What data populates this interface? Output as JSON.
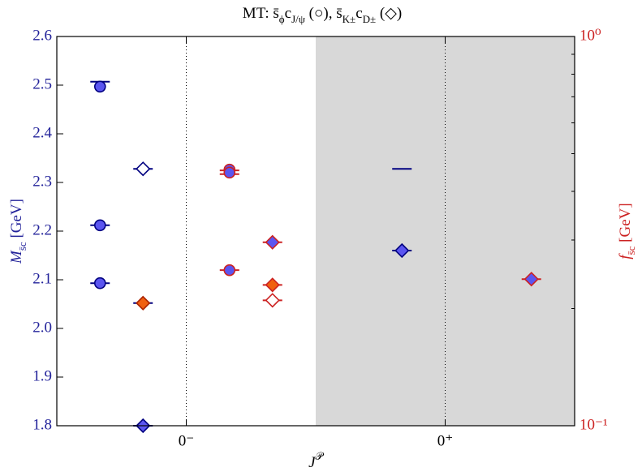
{
  "chart_data": {
    "type": "scatter",
    "title": [
      {
        "text": "MT: s̄"
      },
      {
        "text": "ϕ",
        "sub": true
      },
      {
        "text": "c"
      },
      {
        "text": "J/ψ",
        "sub": true
      },
      {
        "text": " (○), s̄"
      },
      {
        "text": "K±",
        "sub": true
      },
      {
        "text": "c"
      },
      {
        "text": "D±",
        "sub": true
      },
      {
        "text": " (◇)"
      }
    ],
    "xlabel": [
      {
        "text": "J"
      },
      {
        "text": "𝒫",
        "sup": true
      }
    ],
    "ylabel": [
      {
        "text": "M"
      },
      {
        "text": "s̄c",
        "sub": true
      },
      {
        "text": " [GeV]"
      }
    ],
    "y2label": [
      {
        "text": "f"
      },
      {
        "text": "s̄c",
        "sub": true
      },
      {
        "text": " [GeV]"
      }
    ],
    "xlim": [
      -0.5,
      1.5
    ],
    "xticks": [
      {
        "value": 0,
        "label": "0⁻"
      },
      {
        "value": 1,
        "label": "0⁺"
      }
    ],
    "ylim": [
      1.8,
      2.6
    ],
    "yticks": [
      1.8,
      1.9,
      {
        "value": 2,
        "label": "2.0"
      },
      2.1,
      2.2,
      2.3,
      2.4,
      2.5,
      2.6
    ],
    "y2lim": [
      0.1,
      1
    ],
    "y2log": true,
    "y2ticks": [
      {
        "value": 0.1,
        "label": "10⁻¹"
      },
      {
        "value": 1,
        "label": "10⁰"
      }
    ],
    "y2minor": [
      0.2,
      0.3,
      0.4,
      0.5,
      0.6,
      0.7,
      0.8,
      0.9
    ],
    "y_color": "#22229a",
    "y2_color": "#cc2222",
    "shade": [
      0.5,
      1.5
    ],
    "series": [
      {
        "marker": "circle",
        "fill": "#5b55f0",
        "edge": "#000080",
        "bar_color": "#000080",
        "axis": "y",
        "x": [
          -0.333,
          -0.333,
          -0.333
        ],
        "values": [
          2.497,
          2.212,
          2.093
        ],
        "bars": [
          2.507,
          2.212,
          2.093
        ]
      },
      {
        "marker": "diamond",
        "fill": "#ffffff",
        "edge": "#000080",
        "bar_color": "#000080",
        "axis": "y",
        "x": [
          -0.167
        ],
        "values": [
          2.328
        ],
        "bars": [
          2.328
        ]
      },
      {
        "marker": "diamond",
        "fill": "#f06010",
        "edge": "#aa2200",
        "bar_color": "#000080",
        "axis": "y",
        "x": [
          -0.167
        ],
        "values": [
          2.052
        ],
        "bars": [
          2.052
        ]
      },
      {
        "marker": "diamond",
        "fill": "#5b55f0",
        "edge": "#000080",
        "bar_color": "#000080",
        "axis": "y",
        "x": [
          -0.167,
          0.833
        ],
        "values": [
          1.8,
          2.16
        ],
        "bars": [
          1.8,
          2.16
        ]
      },
      {
        "marker": "none",
        "bar_color": "#000080",
        "axis": "y",
        "x": [
          0.833
        ],
        "values": [
          2.328
        ],
        "bars": [
          2.328
        ]
      },
      {
        "marker": "circle",
        "fill": "#5b55f0",
        "edge": "#cc2222",
        "bar_color": "#cc2222",
        "axis": "y2",
        "x": [
          0.167,
          0.167,
          0.167
        ],
        "values": [
          0.455,
          0.447,
          0.251
        ],
        "bars": [
          0.453,
          0.443,
          0.251
        ]
      },
      {
        "marker": "diamond",
        "fill": "#5b55f0",
        "edge": "#cc2222",
        "bar_color": "#cc2222",
        "axis": "y2",
        "x": [
          0.333,
          1.333
        ],
        "values": [
          0.296,
          0.238
        ],
        "bars": [
          0.296,
          0.238
        ]
      },
      {
        "marker": "diamond",
        "fill": "#f06010",
        "edge": "#cc2222",
        "bar_color": "#cc2222",
        "axis": "y2",
        "x": [
          0.333
        ],
        "values": [
          0.23
        ],
        "bars": [
          0.23
        ]
      },
      {
        "marker": "diamond",
        "fill": "#ffffff",
        "edge": "#cc2222",
        "bar_color": "#cc2222",
        "axis": "y2",
        "x": [
          0.333
        ],
        "values": [
          0.21
        ],
        "bars": [
          0.21
        ]
      }
    ]
  }
}
